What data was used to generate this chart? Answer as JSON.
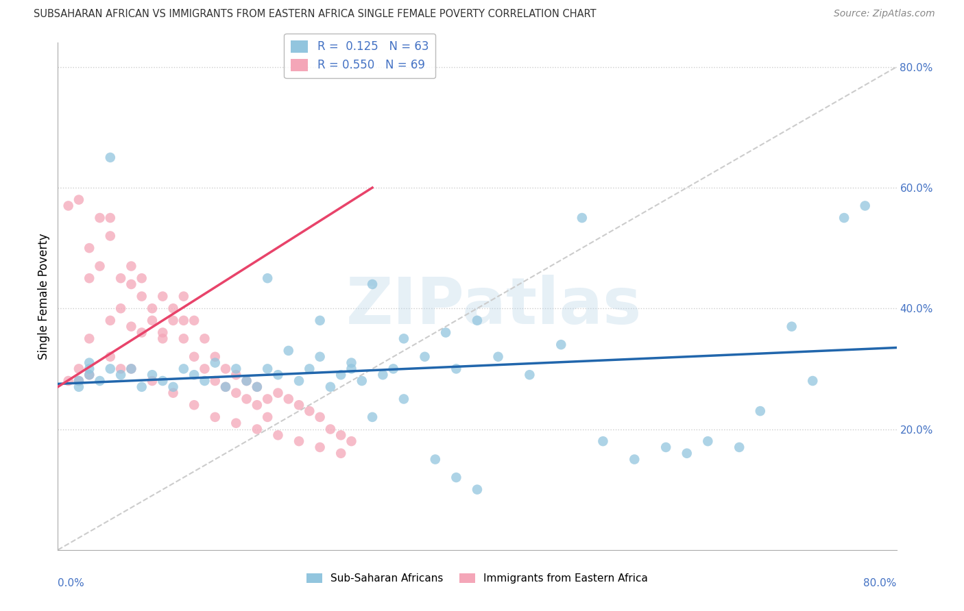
{
  "title": "SUBSAHARAN AFRICAN VS IMMIGRANTS FROM EASTERN AFRICA SINGLE FEMALE POVERTY CORRELATION CHART",
  "source": "Source: ZipAtlas.com",
  "ylabel": "Single Female Poverty",
  "right_yticks": [
    "80.0%",
    "60.0%",
    "40.0%",
    "20.0%"
  ],
  "right_ytick_vals": [
    0.8,
    0.6,
    0.4,
    0.2
  ],
  "blue_color": "#92c5de",
  "pink_color": "#f4a6b8",
  "blue_line_color": "#2166ac",
  "pink_line_color": "#e8436a",
  "diagonal_color": "#cccccc",
  "blue_R": 0.125,
  "blue_N": 63,
  "pink_R": 0.55,
  "pink_N": 69,
  "blue_scatter_x": [
    0.02,
    0.03,
    0.03,
    0.04,
    0.05,
    0.06,
    0.02,
    0.03,
    0.05,
    0.07,
    0.08,
    0.09,
    0.1,
    0.11,
    0.12,
    0.13,
    0.14,
    0.15,
    0.16,
    0.17,
    0.18,
    0.19,
    0.2,
    0.21,
    0.22,
    0.23,
    0.24,
    0.25,
    0.26,
    0.27,
    0.28,
    0.29,
    0.3,
    0.31,
    0.32,
    0.33,
    0.35,
    0.37,
    0.38,
    0.4,
    0.42,
    0.45,
    0.48,
    0.5,
    0.52,
    0.55,
    0.58,
    0.6,
    0.62,
    0.65,
    0.67,
    0.7,
    0.72,
    0.75,
    0.77,
    0.2,
    0.25,
    0.28,
    0.3,
    0.33,
    0.36,
    0.38,
    0.4
  ],
  "blue_scatter_y": [
    0.28,
    0.29,
    0.3,
    0.28,
    0.3,
    0.29,
    0.27,
    0.31,
    0.65,
    0.3,
    0.27,
    0.29,
    0.28,
    0.27,
    0.3,
    0.29,
    0.28,
    0.31,
    0.27,
    0.3,
    0.28,
    0.27,
    0.3,
    0.29,
    0.33,
    0.28,
    0.3,
    0.32,
    0.27,
    0.29,
    0.31,
    0.28,
    0.44,
    0.29,
    0.3,
    0.35,
    0.32,
    0.36,
    0.3,
    0.38,
    0.32,
    0.29,
    0.34,
    0.55,
    0.18,
    0.15,
    0.17,
    0.16,
    0.18,
    0.17,
    0.23,
    0.37,
    0.28,
    0.55,
    0.57,
    0.45,
    0.38,
    0.3,
    0.22,
    0.25,
    0.15,
    0.12,
    0.1
  ],
  "pink_scatter_x": [
    0.01,
    0.02,
    0.01,
    0.02,
    0.02,
    0.03,
    0.03,
    0.03,
    0.04,
    0.04,
    0.05,
    0.05,
    0.05,
    0.06,
    0.06,
    0.06,
    0.07,
    0.07,
    0.07,
    0.08,
    0.08,
    0.08,
    0.09,
    0.09,
    0.1,
    0.1,
    0.1,
    0.11,
    0.11,
    0.12,
    0.12,
    0.12,
    0.13,
    0.13,
    0.14,
    0.14,
    0.15,
    0.15,
    0.16,
    0.16,
    0.17,
    0.17,
    0.18,
    0.18,
    0.19,
    0.19,
    0.2,
    0.2,
    0.21,
    0.22,
    0.23,
    0.24,
    0.25,
    0.26,
    0.27,
    0.28,
    0.03,
    0.05,
    0.07,
    0.09,
    0.11,
    0.13,
    0.15,
    0.17,
    0.19,
    0.21,
    0.23,
    0.25,
    0.27
  ],
  "pink_scatter_y": [
    0.28,
    0.28,
    0.57,
    0.3,
    0.58,
    0.29,
    0.45,
    0.5,
    0.47,
    0.55,
    0.52,
    0.38,
    0.55,
    0.3,
    0.45,
    0.4,
    0.44,
    0.37,
    0.47,
    0.42,
    0.36,
    0.45,
    0.4,
    0.38,
    0.35,
    0.42,
    0.36,
    0.38,
    0.4,
    0.35,
    0.38,
    0.42,
    0.32,
    0.38,
    0.3,
    0.35,
    0.28,
    0.32,
    0.27,
    0.3,
    0.26,
    0.29,
    0.25,
    0.28,
    0.24,
    0.27,
    0.25,
    0.22,
    0.26,
    0.25,
    0.24,
    0.23,
    0.22,
    0.2,
    0.19,
    0.18,
    0.35,
    0.32,
    0.3,
    0.28,
    0.26,
    0.24,
    0.22,
    0.21,
    0.2,
    0.19,
    0.18,
    0.17,
    0.16
  ],
  "blue_line_x0": 0.0,
  "blue_line_x1": 0.8,
  "blue_line_y0": 0.275,
  "blue_line_y1": 0.335,
  "pink_line_x0": 0.0,
  "pink_line_x1": 0.3,
  "pink_line_y0": 0.27,
  "pink_line_y1": 0.6,
  "xlim": [
    0.0,
    0.8
  ],
  "ylim": [
    0.0,
    0.84
  ],
  "background_color": "#ffffff",
  "grid_color": "#cccccc"
}
